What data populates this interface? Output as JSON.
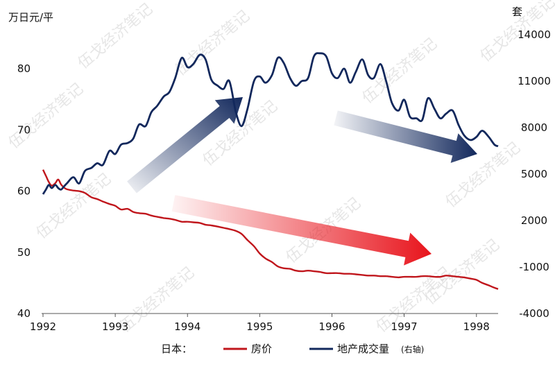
{
  "chart_data": {
    "type": "line",
    "title": "",
    "left_axis_unit": "万日元/平",
    "right_axis_unit": "套",
    "x_ticks": [
      "1992",
      "1993",
      "1994",
      "1995",
      "1996",
      "1997",
      "1998"
    ],
    "y_left_ticks": [
      40,
      50,
      60,
      70,
      80
    ],
    "y_right_ticks": [
      -4000,
      -1000,
      2000,
      5000,
      8000,
      11000,
      14000
    ],
    "ylim_left": [
      40,
      85
    ],
    "ylim_right": [
      -4000,
      14000
    ],
    "xlim": [
      1992,
      1998.3
    ],
    "legend": {
      "prefix": "日本：",
      "placement": "bottom"
    },
    "series": [
      {
        "name": "房价",
        "axis": "left",
        "color": "#c0161c",
        "x": [
          1992.0,
          1992.04,
          1992.08,
          1992.12,
          1992.17,
          1992.21,
          1992.25,
          1992.29,
          1992.33,
          1992.42,
          1992.5,
          1992.58,
          1992.67,
          1992.75,
          1992.83,
          1992.92,
          1993.0,
          1993.08,
          1993.17,
          1993.25,
          1993.33,
          1993.42,
          1993.5,
          1993.58,
          1993.67,
          1993.75,
          1993.83,
          1993.92,
          1994.0,
          1994.08,
          1994.17,
          1994.25,
          1994.33,
          1994.42,
          1994.5,
          1994.58,
          1994.67,
          1994.75,
          1994.83,
          1994.92,
          1995.0,
          1995.08,
          1995.17,
          1995.25,
          1995.33,
          1995.42,
          1995.5,
          1995.58,
          1995.67,
          1995.75,
          1995.83,
          1995.92,
          1996.0,
          1996.08,
          1996.17,
          1996.25,
          1996.33,
          1996.42,
          1996.5,
          1996.58,
          1996.67,
          1996.75,
          1996.83,
          1996.92,
          1997.0,
          1997.08,
          1997.17,
          1997.25,
          1997.33,
          1997.42,
          1997.5,
          1997.58,
          1997.67,
          1997.75,
          1997.83,
          1997.92,
          1998.0,
          1998.08,
          1998.17,
          1998.25,
          1998.3
        ],
        "values": [
          63.5,
          62.5,
          61.5,
          60.9,
          61.3,
          61.9,
          61.1,
          60.6,
          60.3,
          60.1,
          60.0,
          59.7,
          59.0,
          58.7,
          58.3,
          57.9,
          57.6,
          57.0,
          57.1,
          56.6,
          56.4,
          56.3,
          56.0,
          55.8,
          55.6,
          55.5,
          55.3,
          55.0,
          55.0,
          54.9,
          54.8,
          54.5,
          54.4,
          54.2,
          54.0,
          53.8,
          53.5,
          53.0,
          52.0,
          51.0,
          49.8,
          49.0,
          48.4,
          47.7,
          47.4,
          47.3,
          47.0,
          46.9,
          47.0,
          46.9,
          46.8,
          46.6,
          46.6,
          46.6,
          46.5,
          46.5,
          46.4,
          46.3,
          46.2,
          46.2,
          46.1,
          46.1,
          46.0,
          45.9,
          46.0,
          46.0,
          46.0,
          46.1,
          46.1,
          46.0,
          46.0,
          46.2,
          46.1,
          46.0,
          45.9,
          45.7,
          45.5,
          45.0,
          44.6,
          44.2,
          44.0
        ]
      },
      {
        "name": "地产成交量",
        "axis": "right",
        "color": "#12285c",
        "x": [
          1992.0,
          1992.04,
          1992.08,
          1992.12,
          1992.17,
          1992.21,
          1992.25,
          1992.29,
          1992.33,
          1992.42,
          1992.5,
          1992.58,
          1992.67,
          1992.75,
          1992.83,
          1992.92,
          1993.0,
          1993.08,
          1993.17,
          1993.25,
          1993.33,
          1993.42,
          1993.5,
          1993.58,
          1993.67,
          1993.75,
          1993.83,
          1993.92,
          1994.0,
          1994.08,
          1994.17,
          1994.25,
          1994.33,
          1994.42,
          1994.5,
          1994.58,
          1994.67,
          1994.75,
          1994.83,
          1994.92,
          1995.0,
          1995.08,
          1995.17,
          1995.25,
          1995.33,
          1995.42,
          1995.5,
          1995.58,
          1995.67,
          1995.75,
          1995.83,
          1995.92,
          1996.0,
          1996.08,
          1996.17,
          1996.25,
          1996.33,
          1996.42,
          1996.5,
          1996.58,
          1996.67,
          1996.75,
          1996.83,
          1996.92,
          1997.0,
          1997.08,
          1997.17,
          1997.25,
          1997.33,
          1997.42,
          1997.5,
          1997.58,
          1997.67,
          1997.75,
          1997.83,
          1997.92,
          1998.0,
          1998.08,
          1998.17,
          1998.25,
          1998.3
        ],
        "values": [
          3700,
          4000,
          4300,
          4100,
          4300,
          4100,
          4000,
          4200,
          4400,
          4800,
          4400,
          5200,
          5400,
          5700,
          5600,
          6500,
          6300,
          6900,
          7000,
          7300,
          8200,
          8100,
          9000,
          9400,
          10000,
          10300,
          11200,
          12500,
          11900,
          12100,
          12700,
          12400,
          11100,
          10700,
          10500,
          11000,
          9000,
          8100,
          9200,
          11000,
          11300,
          10900,
          11400,
          12500,
          12200,
          11200,
          10700,
          11000,
          11200,
          12600,
          12800,
          12600,
          11500,
          11200,
          11800,
          10900,
          11600,
          12400,
          11400,
          11200,
          12100,
          11000,
          9600,
          9100,
          9800,
          8700,
          8600,
          8500,
          9900,
          9200,
          8600,
          8900,
          9100,
          8200,
          7500,
          7200,
          7400,
          7800,
          7400,
          6900,
          6800
        ]
      }
    ],
    "arrows": [
      {
        "style": "blue-up"
      },
      {
        "style": "blue-down"
      },
      {
        "style": "red-down"
      }
    ],
    "watermark": "伍戈经济笔记"
  }
}
